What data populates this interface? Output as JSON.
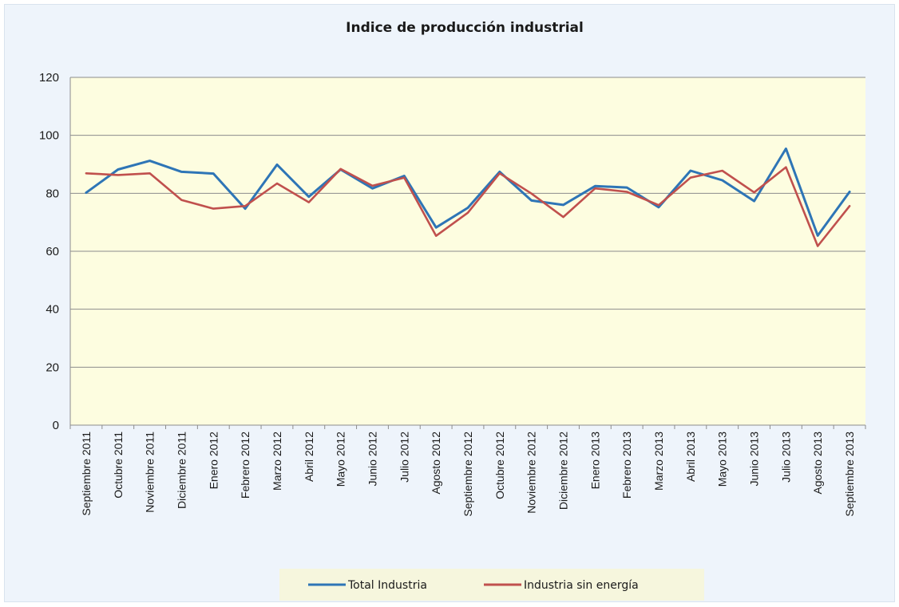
{
  "chart_data": {
    "type": "line",
    "title": "Indice de producción industrial",
    "xlabel": "",
    "ylabel": "",
    "ylim": [
      0,
      120
    ],
    "yticks": [
      0,
      20,
      40,
      60,
      80,
      100,
      120
    ],
    "grid": "horizontal",
    "legend_position": "bottom",
    "categories": [
      "Septiembre 2011",
      "Octubre 2011",
      "Noviembre 2011",
      "Diciembre 2011",
      "Enero 2012",
      "Febrero 2012",
      "Marzo 2012",
      "Abril 2012",
      "Mayo 2012",
      "Junio 2012",
      "Julio 2012",
      "Agosto 2012",
      "Septiembre 2012",
      "Octubre 2012",
      "Noviembre 2012",
      "Diciembre 2012",
      "Enero 2013",
      "Febrero 2013",
      "Marzo 2013",
      "Abril 2013",
      "Mayo 2013",
      "Junio 2013",
      "Julio 2013",
      "Agosto 2013",
      "Septiembre 2013"
    ],
    "series": [
      {
        "name": "Total Industria",
        "color": "#2e75b6",
        "values": [
          80.2,
          88.2,
          91.2,
          87.4,
          86.8,
          74.7,
          89.9,
          78.8,
          88.2,
          81.7,
          86.0,
          68.2,
          75.0,
          87.4,
          77.5,
          76.0,
          82.5,
          82.0,
          75.2,
          87.8,
          84.5,
          77.3,
          95.4,
          65.4,
          80.5
        ]
      },
      {
        "name": "Industria sin energía",
        "color": "#c0504d",
        "values": [
          86.9,
          86.3,
          86.9,
          77.7,
          74.7,
          75.6,
          83.4,
          76.9,
          88.4,
          82.6,
          85.4,
          65.3,
          73.3,
          86.9,
          79.9,
          71.8,
          81.7,
          80.5,
          75.9,
          85.4,
          87.8,
          80.3,
          89.0,
          61.8,
          75.6
        ]
      }
    ]
  },
  "colors": {
    "frame_background": "#eef4fb",
    "plot_background": "#fdfde0",
    "legend_background": "#f6f6dd",
    "gridline": "#8c8c8c"
  }
}
